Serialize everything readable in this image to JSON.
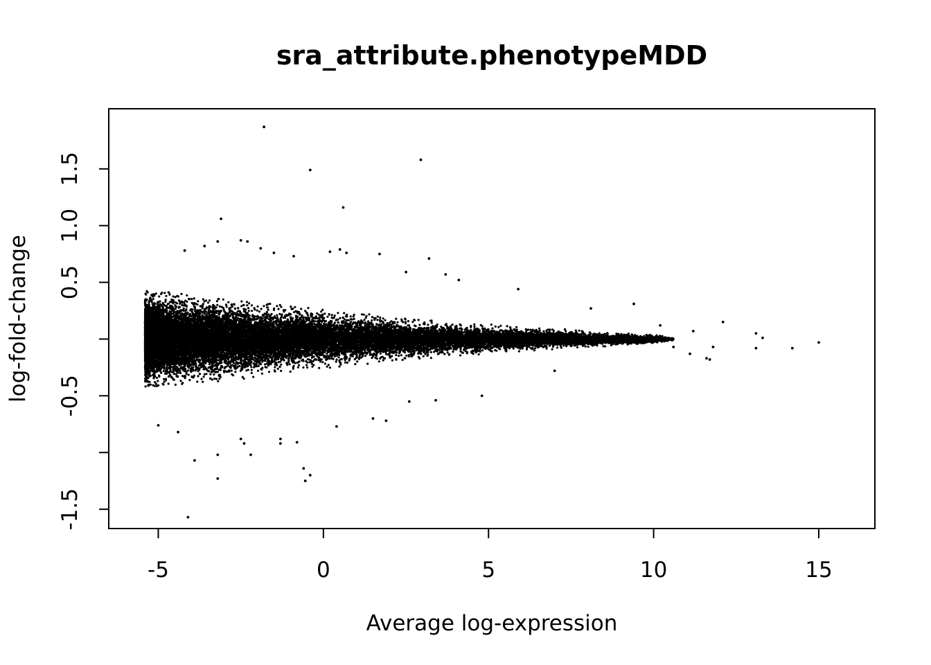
{
  "chart_data": {
    "type": "scatter",
    "title": "sra_attribute.phenotypeMDD",
    "xlabel": "Average log-expression",
    "ylabel": "log-fold-change",
    "xlim": [
      -6.5,
      16.7
    ],
    "ylim": [
      -1.67,
      2.03
    ],
    "x_ticks": [
      -5,
      0,
      5,
      10,
      15
    ],
    "x_tick_labels": [
      "-5",
      "0",
      "5",
      "10",
      "15"
    ],
    "y_ticks": [
      -1.5,
      -1.0,
      -0.5,
      0.0,
      0.5,
      1.0,
      1.5
    ],
    "y_tick_labels": [
      "-1.5",
      "",
      "-0.5",
      "",
      "0.5",
      "1.0",
      "1.5"
    ],
    "grid": false,
    "legend": "none",
    "point_color": "#000000",
    "density_envelope": [
      {
        "x": -5.4,
        "spread": 0.34
      },
      {
        "x": -4.0,
        "spread": 0.32
      },
      {
        "x": -2.0,
        "spread": 0.27
      },
      {
        "x": 0.0,
        "spread": 0.21
      },
      {
        "x": 2.0,
        "spread": 0.16
      },
      {
        "x": 4.0,
        "spread": 0.12
      },
      {
        "x": 6.0,
        "spread": 0.09
      },
      {
        "x": 8.0,
        "spread": 0.06
      },
      {
        "x": 10.0,
        "spread": 0.03
      },
      {
        "x": 10.6,
        "spread": 0.01
      }
    ],
    "outliers": [
      {
        "x": -1.8,
        "y": 1.87
      },
      {
        "x": -0.4,
        "y": 1.49
      },
      {
        "x": 2.95,
        "y": 1.58
      },
      {
        "x": 0.6,
        "y": 1.16
      },
      {
        "x": -3.1,
        "y": 1.06
      },
      {
        "x": -4.2,
        "y": 0.78
      },
      {
        "x": -3.6,
        "y": 0.82
      },
      {
        "x": -3.2,
        "y": 0.86
      },
      {
        "x": -2.5,
        "y": 0.87
      },
      {
        "x": -2.3,
        "y": 0.86
      },
      {
        "x": -1.9,
        "y": 0.8
      },
      {
        "x": -1.5,
        "y": 0.76
      },
      {
        "x": -0.9,
        "y": 0.73
      },
      {
        "x": 0.2,
        "y": 0.77
      },
      {
        "x": 0.5,
        "y": 0.79
      },
      {
        "x": 0.7,
        "y": 0.76
      },
      {
        "x": 1.7,
        "y": 0.75
      },
      {
        "x": 3.2,
        "y": 0.71
      },
      {
        "x": 2.5,
        "y": 0.59
      },
      {
        "x": 3.7,
        "y": 0.57
      },
      {
        "x": 4.1,
        "y": 0.52
      },
      {
        "x": 5.9,
        "y": 0.44
      },
      {
        "x": 9.4,
        "y": 0.31
      },
      {
        "x": 8.1,
        "y": 0.27
      },
      {
        "x": 12.1,
        "y": 0.15
      },
      {
        "x": 10.2,
        "y": 0.12
      },
      {
        "x": 11.2,
        "y": 0.07
      },
      {
        "x": 13.1,
        "y": 0.05
      },
      {
        "x": 13.3,
        "y": 0.01
      },
      {
        "x": 15.0,
        "y": -0.03
      },
      {
        "x": 14.2,
        "y": -0.08
      },
      {
        "x": 13.1,
        "y": -0.08
      },
      {
        "x": 11.8,
        "y": -0.07
      },
      {
        "x": 11.1,
        "y": -0.13
      },
      {
        "x": 11.7,
        "y": -0.18
      },
      {
        "x": 11.6,
        "y": -0.17
      },
      {
        "x": 10.6,
        "y": -0.07
      },
      {
        "x": -5.3,
        "y": -0.41
      },
      {
        "x": -5.0,
        "y": -0.76
      },
      {
        "x": -4.4,
        "y": -0.82
      },
      {
        "x": -3.9,
        "y": -1.07
      },
      {
        "x": -3.2,
        "y": -1.02
      },
      {
        "x": -3.2,
        "y": -1.23
      },
      {
        "x": -2.5,
        "y": -0.88
      },
      {
        "x": -2.4,
        "y": -0.92
      },
      {
        "x": -2.2,
        "y": -1.02
      },
      {
        "x": -1.3,
        "y": -0.88
      },
      {
        "x": -1.3,
        "y": -0.92
      },
      {
        "x": -0.8,
        "y": -0.91
      },
      {
        "x": -0.6,
        "y": -1.14
      },
      {
        "x": -0.4,
        "y": -1.2
      },
      {
        "x": -0.55,
        "y": -1.25
      },
      {
        "x": -4.1,
        "y": -1.57
      },
      {
        "x": 0.4,
        "y": -0.77
      },
      {
        "x": 1.5,
        "y": -0.7
      },
      {
        "x": 1.9,
        "y": -0.72
      },
      {
        "x": 3.4,
        "y": -0.54
      },
      {
        "x": 4.8,
        "y": -0.5
      },
      {
        "x": 2.6,
        "y": -0.55
      },
      {
        "x": 7.0,
        "y": -0.28
      }
    ]
  }
}
